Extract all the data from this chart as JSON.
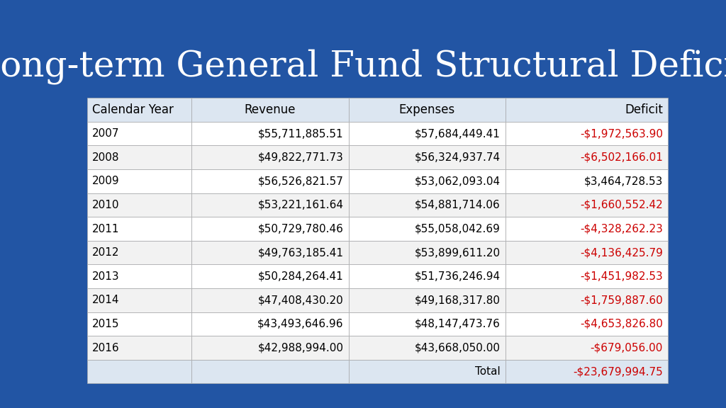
{
  "title": "Long-term General Fund Structural Deficit",
  "background_color": "#2255a4",
  "title_color": "#ffffff",
  "title_fontsize": 36,
  "columns": [
    "Calendar Year",
    "Revenue",
    "Expenses",
    "Deficit"
  ],
  "rows": [
    [
      "2007",
      "$55,711,885.51",
      "$57,684,449.41",
      "-$1,972,563.90"
    ],
    [
      "2008",
      "$49,822,771.73",
      "$56,324,937.74",
      "-$6,502,166.01"
    ],
    [
      "2009",
      "$56,526,821.57",
      "$53,062,093.04",
      "$3,464,728.53"
    ],
    [
      "2010",
      "$53,221,161.64",
      "$54,881,714.06",
      "-$1,660,552.42"
    ],
    [
      "2011",
      "$50,729,780.46",
      "$55,058,042.69",
      "-$4,328,262.23"
    ],
    [
      "2012",
      "$49,763,185.41",
      "$53,899,611.20",
      "-$4,136,425.79"
    ],
    [
      "2013",
      "$50,284,264.41",
      "$51,736,246.94",
      "-$1,451,982.53"
    ],
    [
      "2014",
      "$47,408,430.20",
      "$49,168,317.80",
      "-$1,759,887.60"
    ],
    [
      "2015",
      "$43,493,646.96",
      "$48,147,473.76",
      "-$4,653,826.80"
    ],
    [
      "2016",
      "$42,988,994.00",
      "$43,668,050.00",
      "-$679,056.00"
    ]
  ],
  "total_row": [
    "",
    "",
    "Total",
    "-$23,679,994.75"
  ],
  "deficit_positive_color": "#000000",
  "deficit_negative_color": "#cc0000",
  "header_bg": "#dce6f1",
  "row_bg_even": "#f2f2f2",
  "row_bg_odd": "#ffffff",
  "total_bg": "#dce6f1",
  "table_text_color": "#000000",
  "col_aligns": [
    "left",
    "right",
    "right",
    "right"
  ],
  "header_aligns": [
    "left",
    "center",
    "center",
    "right"
  ]
}
